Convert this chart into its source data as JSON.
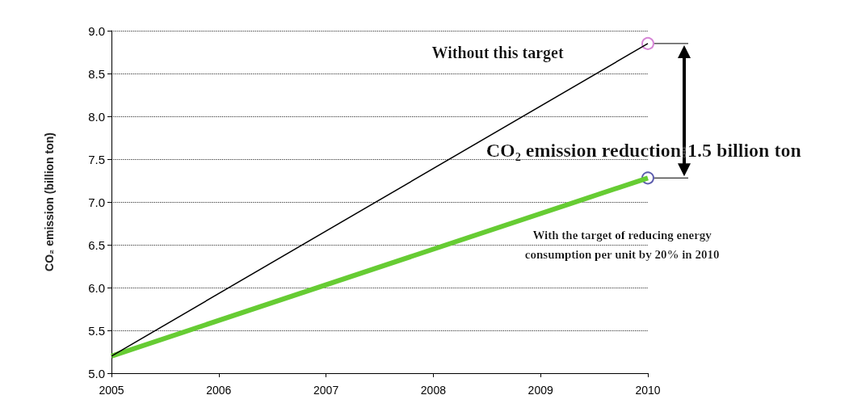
{
  "chart_data": {
    "type": "line",
    "ylabel": "CO₂ emission (billion ton)",
    "xlim": [
      2005,
      2010
    ],
    "xticks": [
      2005,
      2006,
      2007,
      2008,
      2009,
      2010
    ],
    "ylim": [
      5,
      9
    ],
    "yticks": [
      {
        "value": 5,
        "label": "5.0"
      },
      {
        "value": 5.5,
        "label": "5.5"
      },
      {
        "value": 6,
        "label": "6.0"
      },
      {
        "value": 6.5,
        "label": "6.5"
      },
      {
        "value": 7,
        "label": "7.0"
      },
      {
        "value": 7.5,
        "label": "7.5"
      },
      {
        "value": 8,
        "label": "8.0"
      },
      {
        "value": 8.5,
        "label": "8.5"
      },
      {
        "value": 9,
        "label": "9.0"
      }
    ],
    "grid": "y",
    "x": [
      2005,
      2010
    ],
    "series": [
      {
        "color": "#000000",
        "values": [
          5.2,
          8.85
        ],
        "marker": "none",
        "line_style": "solid"
      },
      {
        "color": "#66cc33",
        "values": [
          5.2,
          7.28
        ],
        "marker": "none",
        "line_style": "solid"
      },
      {
        "type": "scatter",
        "color": "#cc66cc",
        "x": [
          2010
        ],
        "values": [
          8.85
        ],
        "marker": "circle"
      },
      {
        "type": "scatter",
        "color": "#333399",
        "x": [
          2010
        ],
        "values": [
          7.28
        ],
        "marker": "circle"
      }
    ],
    "annotations": [
      "Without this target",
      "CO₂ emission reduction:1.5 billion ton",
      "With the target of reducing energy\nconsumption per unit by 20% in 2010"
    ]
  }
}
